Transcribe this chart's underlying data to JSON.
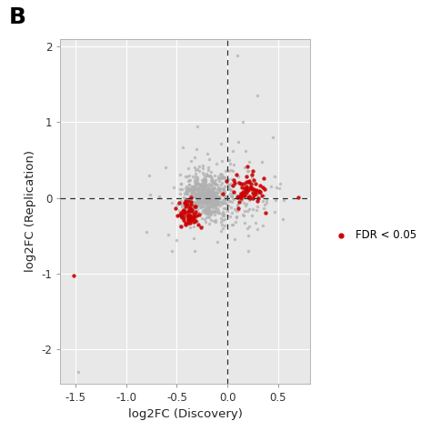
{
  "title_label": "B",
  "xlabel": "log2FC (Discovery)",
  "ylabel": "log2FC (Replication)",
  "xlim": [
    -1.65,
    0.82
  ],
  "ylim": [
    -2.45,
    2.1
  ],
  "xticks": [
    -1.5,
    -1.0,
    -0.5,
    0.0,
    0.5
  ],
  "yticks": [
    -2,
    -1,
    0,
    1,
    2
  ],
  "hline": 0.0,
  "vline": 0.0,
  "legend_label": "FDR < 0.05",
  "legend_color": "#cc0000",
  "gray_color": "#b0b0b0",
  "red_color": "#cc0000",
  "bg_color": "#e8e8e8",
  "grid_color": "#ffffff",
  "point_size_gray": 6,
  "point_size_red": 10,
  "gray_alpha": 0.75,
  "red_alpha": 0.9,
  "seed": 42
}
